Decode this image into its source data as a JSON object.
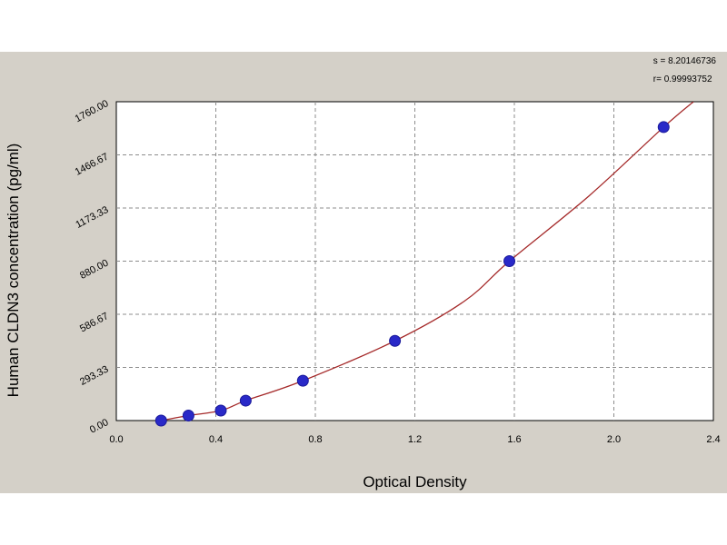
{
  "stats": {
    "s_line": "s = 8.20146736",
    "r_line": "r= 0.99993752"
  },
  "chart_data": {
    "type": "scatter",
    "title": "",
    "xlabel": "Optical Density",
    "ylabel": "Human CLDN3 concentration (pg/ml)",
    "xlim": [
      0.0,
      2.4
    ],
    "ylim": [
      0.0,
      1760.0
    ],
    "x_ticks": [
      "0.0",
      "0.4",
      "0.8",
      "1.2",
      "1.6",
      "2.0",
      "2.4"
    ],
    "x_tick_values": [
      0.0,
      0.4,
      0.8,
      1.2,
      1.6,
      2.0,
      2.4
    ],
    "y_ticks": [
      "0.00",
      "293.33",
      "586.67",
      "880.00",
      "1173.33",
      "1466.67",
      "1760.00"
    ],
    "y_tick_values": [
      0,
      293.33,
      586.67,
      880.0,
      1173.33,
      1466.67,
      1760.0
    ],
    "grid": true,
    "series": [
      {
        "x": [
          0.18,
          0.29,
          0.42,
          0.52,
          0.75,
          1.12,
          1.58,
          2.2
        ],
        "y": [
          0,
          27.5,
          55,
          110,
          220,
          440,
          880,
          1620
        ]
      }
    ],
    "fit_curve": {
      "x": [
        0.13,
        0.18,
        0.29,
        0.42,
        0.52,
        0.75,
        1.12,
        1.4,
        1.58,
        1.9,
        2.2,
        2.32
      ],
      "y": [
        -10,
        0,
        27.5,
        55,
        110,
        220,
        440,
        660,
        880,
        1240,
        1620,
        1760
      ]
    },
    "colors": {
      "point": "#2929c8",
      "curve": "#a52a2a",
      "grid": "#8c8c8c",
      "plot_bg": "#ffffff",
      "panel_bg": "#d4d0c8"
    }
  }
}
